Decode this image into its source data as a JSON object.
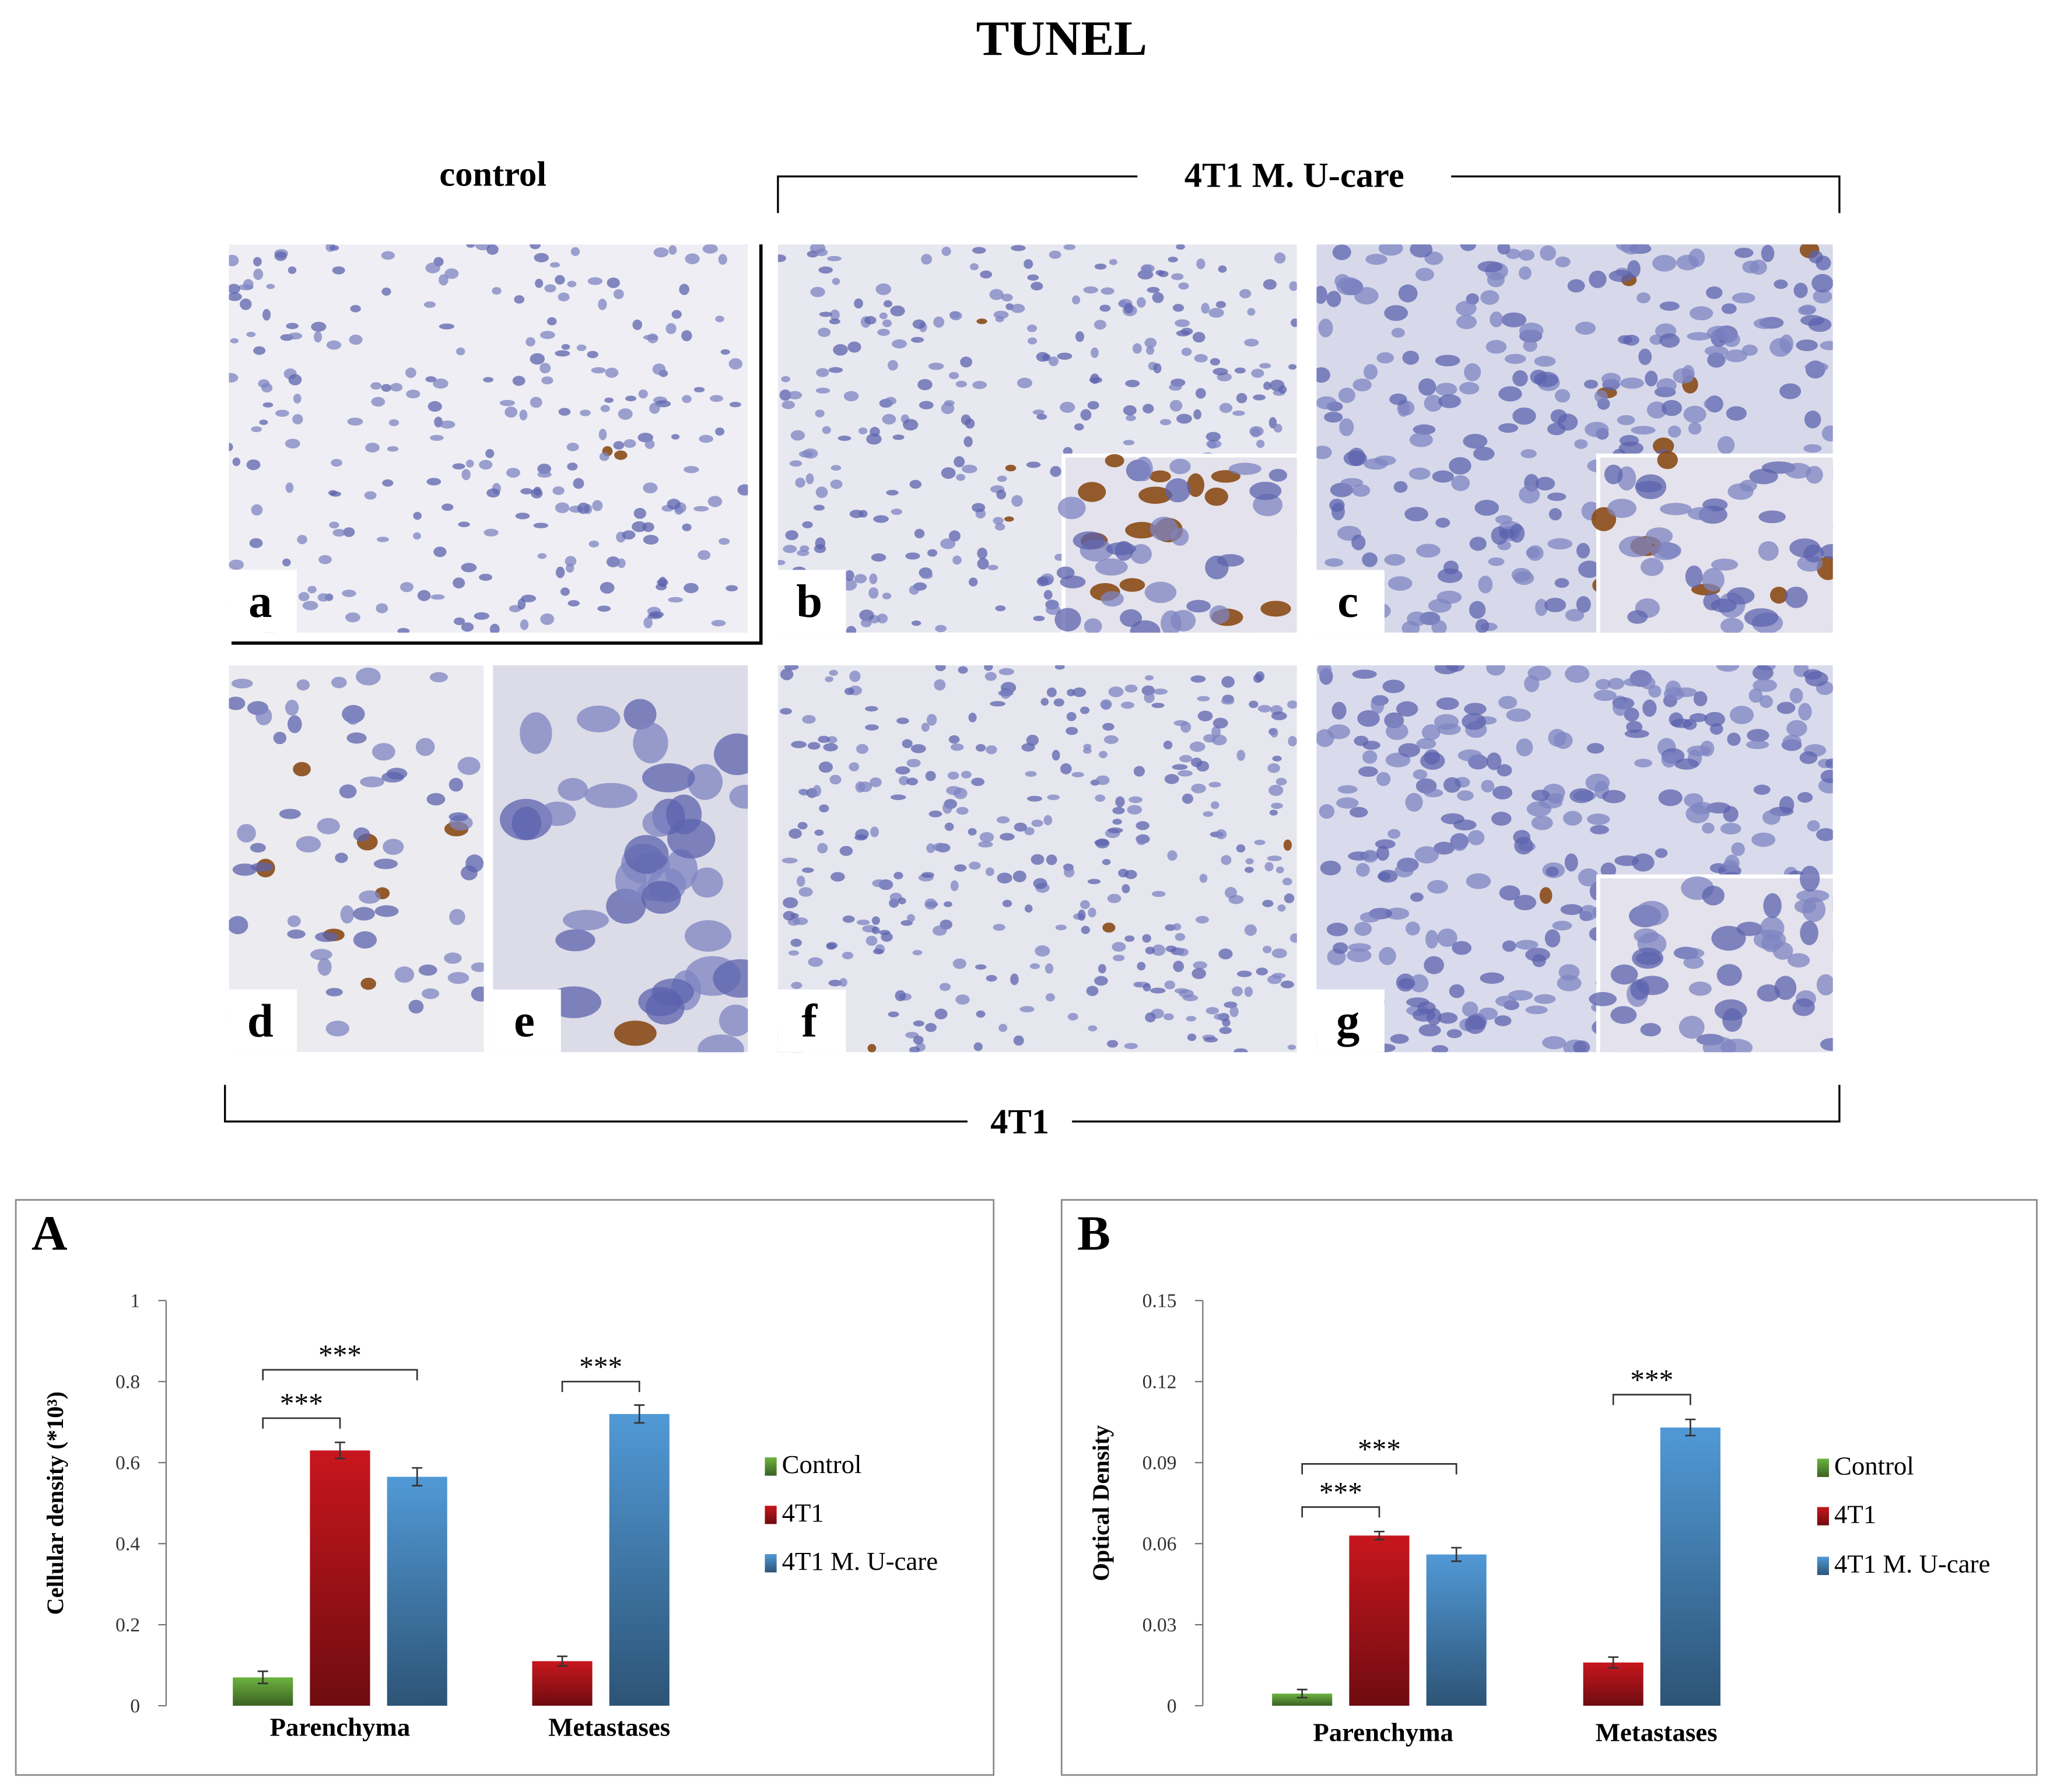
{
  "figure": {
    "title": "TUNEL",
    "group_labels": [
      "control",
      "4T1 M. U-care",
      "4T1"
    ],
    "panel_labels": [
      "a",
      "b",
      "c",
      "d",
      "e",
      "f",
      "g"
    ]
  },
  "chart_data": [
    {
      "type": "bar",
      "panel_label": "A",
      "y_label": "Cellular density (*10³)",
      "categories": [
        "Parenchyma",
        "Metastases"
      ],
      "series": [
        {
          "name": "Control",
          "color": "#6cb33f",
          "values": [
            0.07,
            null
          ],
          "errors": [
            0.015,
            null
          ]
        },
        {
          "name": "4T1",
          "color": "#c8161d",
          "values": [
            0.63,
            0.11
          ],
          "errors": [
            0.02,
            0.012
          ]
        },
        {
          "name": "4T1 M. U-care",
          "color": "#5199d6",
          "values": [
            0.565,
            0.72
          ],
          "errors": [
            0.022,
            0.022
          ]
        }
      ],
      "significance": [
        "***",
        "***",
        "***"
      ],
      "ylim": [
        0,
        1
      ],
      "yticks": [
        0,
        0.2,
        0.4,
        0.6,
        0.8,
        1
      ],
      "legend": "right"
    },
    {
      "type": "bar",
      "panel_label": "B",
      "y_label": "Optical Density",
      "categories": [
        "Parenchyma",
        "Metastases"
      ],
      "series": [
        {
          "name": "Control",
          "color": "#6cb33f",
          "values": [
            0.0045,
            null
          ],
          "errors": [
            0.0015,
            null
          ]
        },
        {
          "name": "4T1",
          "color": "#c8161d",
          "values": [
            0.063,
            0.016
          ],
          "errors": [
            0.0015,
            0.002
          ]
        },
        {
          "name": "4T1 M. U-care",
          "color": "#5199d6",
          "values": [
            0.056,
            0.103
          ],
          "errors": [
            0.0025,
            0.003
          ]
        }
      ],
      "significance": [
        "***",
        "***",
        "***"
      ],
      "ylim": [
        0,
        0.15
      ],
      "yticks": [
        0,
        0.03,
        0.06,
        0.09,
        0.12,
        0.15
      ],
      "legend": "right"
    }
  ]
}
